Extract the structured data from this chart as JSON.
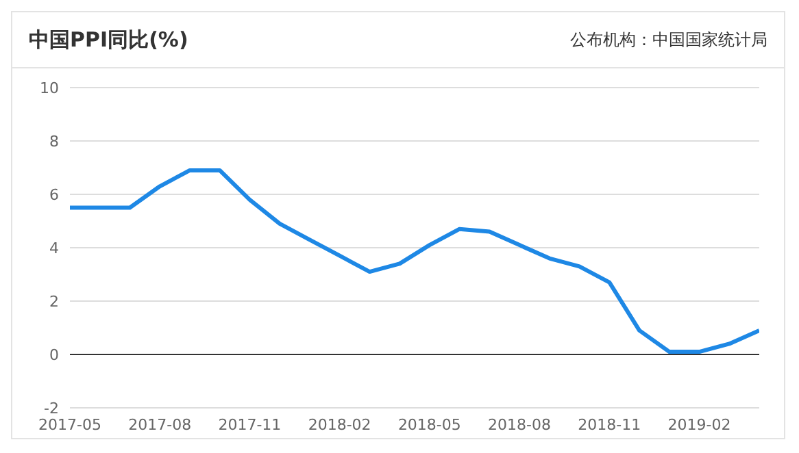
{
  "chart_data": {
    "type": "line",
    "title": "中国PPI同比(%)",
    "annotations": [
      "公布机构：中国国家统计局"
    ],
    "categories": [
      "2017-05",
      null,
      null,
      "2017-08",
      null,
      null,
      "2017-11",
      null,
      null,
      "2018-02",
      null,
      null,
      "2018-05",
      null,
      null,
      "2018-08",
      null,
      null,
      "2018-11",
      null,
      null,
      "2019-02",
      null,
      null
    ],
    "series": [
      {
        "color": "#1e88e5",
        "values": [
          5.5,
          5.5,
          5.5,
          6.3,
          6.9,
          6.9,
          5.8,
          4.9,
          4.3,
          3.7,
          3.1,
          3.4,
          4.1,
          4.7,
          4.6,
          4.1,
          3.6,
          3.3,
          2.7,
          0.9,
          0.1,
          0.1,
          0.4,
          0.9
        ]
      }
    ],
    "ylim": [
      -2,
      10
    ],
    "yticks": [
      -2,
      0,
      2,
      4,
      6,
      8,
      10
    ],
    "grid": "y",
    "marker": "none",
    "line_style": "solid",
    "ref_lines": [
      {
        "axis": "y",
        "value": 0,
        "color": "#333333"
      }
    ]
  }
}
